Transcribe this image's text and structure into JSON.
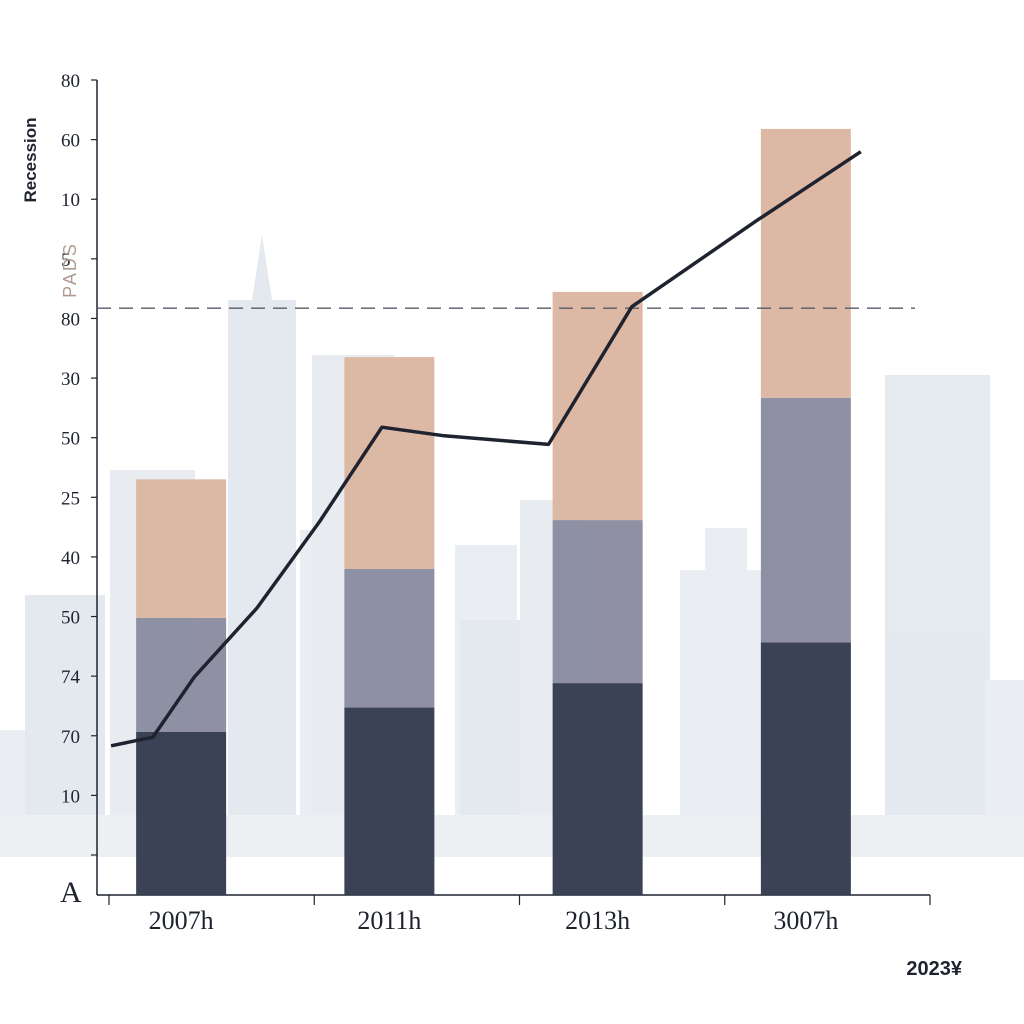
{
  "chart_data": {
    "type": "bar",
    "stacked": true,
    "categories": [
      "2007h",
      "2011h",
      "2013h",
      "3007h"
    ],
    "y_tick_labels": [
      "80",
      "60",
      "10",
      "5",
      "80",
      "30",
      "50",
      "25",
      "40",
      "50",
      "74",
      "70",
      "10",
      ""
    ],
    "ylim": [
      0,
      100
    ],
    "ylabel": "Recession",
    "ylabel2": "PADS",
    "corner_label": "A",
    "footnote": "2023¥",
    "reference_line": {
      "value": 72,
      "style": "dashed"
    },
    "series": [
      {
        "values": [
          20,
          23,
          26,
          31
        ],
        "color": "#343a4e"
      },
      {
        "values": [
          14,
          17,
          20,
          30
        ],
        "color": "#8a8b9f"
      },
      {
        "values": [
          17,
          26,
          28,
          33
        ],
        "color": "#dcb6a1"
      }
    ],
    "line_series": {
      "color": "#1f2330",
      "points": [
        {
          "x": 0.0,
          "y": 55
        },
        {
          "x": 0.2,
          "y": 56
        },
        {
          "x": 0.4,
          "y": 63
        },
        {
          "x": 0.7,
          "y": 71
        },
        {
          "x": 1.0,
          "y": 81
        },
        {
          "x": 1.3,
          "y": 92
        },
        {
          "x": 1.6,
          "y": 91
        },
        {
          "x": 2.1,
          "y": 90
        },
        {
          "x": 2.5,
          "y": 106
        },
        {
          "x": 3.1,
          "y": 116
        },
        {
          "x": 3.6,
          "y": 124
        }
      ]
    },
    "grid": false,
    "legend": "none"
  },
  "colors": {
    "background": "#ffffff",
    "skyline": "#d6dde6",
    "axis": "#1f2330"
  }
}
